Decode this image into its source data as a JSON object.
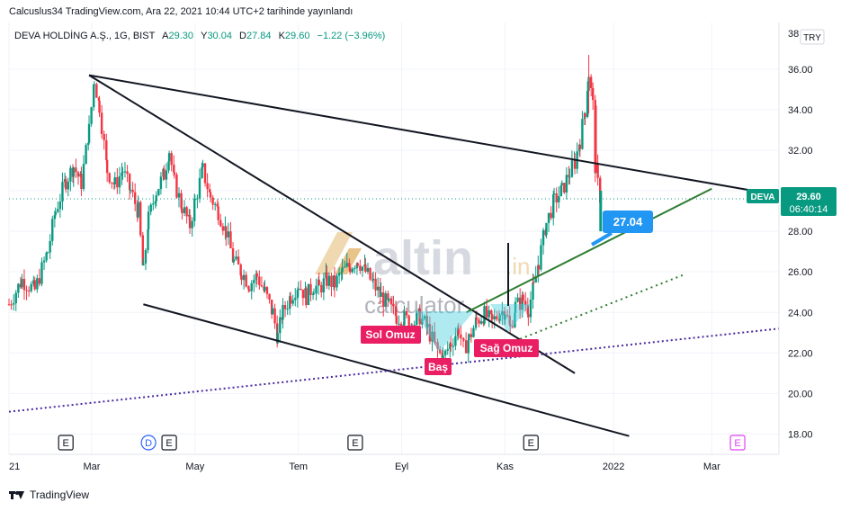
{
  "header": {
    "published": "Calcuslus34 TradingView.com, Ara 22, 2021 10:44 UTC+2 tarihinde yayınlandı"
  },
  "legend": {
    "symbol": "DEVA HOLDİNG A.Ş., 1G, BIST",
    "open_label": "A",
    "open": "29.30",
    "high_label": "Y",
    "high": "30.04",
    "low_label": "D",
    "low": "27.84",
    "close_label": "K",
    "close": "29.60",
    "change": "−1.22 (−3.96%)"
  },
  "currency": "TRY",
  "price_tag": {
    "symbol": "DEVA",
    "price": "29.60",
    "countdown": "06:40:14"
  },
  "target_label": "27.04",
  "pattern_labels": {
    "left_shoulder": "Sol Omuz",
    "head": "Baş",
    "right_shoulder": "Sağ Omuz"
  },
  "watermark": {
    "brand": "altin",
    "tld": ".in",
    "sub": "calculator"
  },
  "footer": {
    "brand": "TradingView"
  },
  "event_markers": [
    {
      "text": "E",
      "color": "#131722",
      "month_pos": 1.1
    },
    {
      "text": "D",
      "color": "#2962ff",
      "month_pos": 2.7
    },
    {
      "text": "E",
      "color": "#131722",
      "month_pos": 3.1
    },
    {
      "text": "E",
      "color": "#131722",
      "month_pos": 6.7
    },
    {
      "text": "E",
      "color": "#131722",
      "month_pos": 10.1
    },
    {
      "text": "E",
      "color": "#e040fb",
      "month_pos": 14.1
    }
  ],
  "colors": {
    "up": "#089981",
    "down": "#f23645",
    "trend": "#131722",
    "green_line": "#2e7d32",
    "purple_line": "#4a2a9e",
    "label_bg": "#e91e63",
    "target_bg": "#2196f3"
  },
  "chart_data": {
    "type": "candlestick",
    "y_axis": {
      "ticks": [
        "36.00",
        "34.00",
        "32.00",
        "30.00",
        "28.00",
        "26.00",
        "24.00",
        "22.00",
        "20.00",
        "18.00"
      ],
      "ylim": [
        17.0,
        38.3
      ],
      "top_partial_tick": "38"
    },
    "x_axis": {
      "ticks": [
        {
          "label": "21",
          "pos": 0.0
        },
        {
          "label": "Mar",
          "pos": 1.6
        },
        {
          "label": "May",
          "pos": 3.6
        },
        {
          "label": "Tem",
          "pos": 5.6
        },
        {
          "label": "Eyl",
          "pos": 7.6
        },
        {
          "label": "Kas",
          "pos": 9.6
        },
        {
          "label": "2022",
          "pos": 11.7
        },
        {
          "label": "Mar",
          "pos": 13.6
        }
      ],
      "xlim": [
        0,
        14.9
      ],
      "unit": "months since start of 2021"
    },
    "current_price": 29.6,
    "series_close": [
      [
        0.0,
        24.4
      ],
      [
        0.25,
        25.6
      ],
      [
        0.5,
        25.1
      ],
      [
        0.75,
        27.0
      ],
      [
        0.9,
        29.0
      ],
      [
        1.1,
        30.5
      ],
      [
        1.25,
        31.2
      ],
      [
        1.4,
        30.4
      ],
      [
        1.55,
        33.0
      ],
      [
        1.65,
        35.5
      ],
      [
        1.75,
        34.2
      ],
      [
        1.9,
        31.0
      ],
      [
        2.05,
        30.3
      ],
      [
        2.2,
        31.0
      ],
      [
        2.35,
        30.0
      ],
      [
        2.5,
        29.0
      ],
      [
        2.6,
        26.0
      ],
      [
        2.7,
        28.6
      ],
      [
        2.85,
        30.0
      ],
      [
        3.0,
        30.8
      ],
      [
        3.1,
        32.0
      ],
      [
        3.2,
        30.4
      ],
      [
        3.35,
        29.2
      ],
      [
        3.5,
        28.3
      ],
      [
        3.6,
        29.5
      ],
      [
        3.75,
        31.0
      ],
      [
        3.9,
        29.7
      ],
      [
        4.05,
        29.0
      ],
      [
        4.2,
        28.0
      ],
      [
        4.35,
        26.5
      ],
      [
        4.5,
        26.0
      ],
      [
        4.65,
        25.4
      ],
      [
        4.8,
        25.8
      ],
      [
        4.95,
        25.0
      ],
      [
        5.1,
        24.0
      ],
      [
        5.2,
        22.8
      ],
      [
        5.3,
        24.0
      ],
      [
        5.45,
        24.8
      ],
      [
        5.6,
        25.4
      ],
      [
        5.75,
        24.8
      ],
      [
        5.9,
        25.3
      ],
      [
        6.0,
        25.2
      ],
      [
        6.15,
        25.6
      ],
      [
        6.3,
        25.4
      ],
      [
        6.45,
        26.0
      ],
      [
        6.6,
        26.3
      ],
      [
        6.75,
        26.6
      ],
      [
        6.9,
        26.0
      ],
      [
        7.05,
        25.4
      ],
      [
        7.2,
        24.8
      ],
      [
        7.35,
        24.3
      ],
      [
        7.5,
        23.8
      ],
      [
        7.65,
        23.7
      ],
      [
        7.8,
        23.4
      ],
      [
        7.95,
        23.8
      ],
      [
        8.1,
        23.2
      ],
      [
        8.25,
        22.3
      ],
      [
        8.4,
        21.7
      ],
      [
        8.55,
        22.5
      ],
      [
        8.7,
        23.2
      ],
      [
        8.8,
        22.2
      ],
      [
        8.9,
        22.7
      ],
      [
        9.05,
        23.6
      ],
      [
        9.2,
        23.9
      ],
      [
        9.35,
        23.5
      ],
      [
        9.5,
        24.0
      ],
      [
        9.6,
        24.1
      ],
      [
        9.7,
        23.2
      ],
      [
        9.8,
        24.3
      ],
      [
        9.95,
        24.6
      ],
      [
        10.05,
        24.2
      ],
      [
        10.15,
        25.2
      ],
      [
        10.25,
        26.5
      ],
      [
        10.4,
        28.4
      ],
      [
        10.55,
        29.5
      ],
      [
        10.7,
        30.0
      ],
      [
        10.85,
        30.9
      ],
      [
        10.95,
        31.4
      ],
      [
        11.05,
        32.5
      ],
      [
        11.15,
        34.0
      ],
      [
        11.22,
        35.8
      ],
      [
        11.3,
        34.2
      ],
      [
        11.35,
        30.9
      ],
      [
        11.45,
        29.6
      ]
    ],
    "trend_lines": [
      {
        "style": "solid",
        "points": [
          [
            1.55,
            35.7
          ],
          [
            14.4,
            30.0
          ]
        ]
      },
      {
        "style": "solid",
        "points": [
          [
            1.55,
            35.7
          ],
          [
            10.95,
            21.0
          ]
        ]
      },
      {
        "style": "solid",
        "points": [
          [
            2.6,
            24.4
          ],
          [
            12.0,
            17.9
          ]
        ]
      },
      {
        "style": "dashed-purple",
        "points": [
          [
            0.0,
            19.1
          ],
          [
            14.9,
            23.2
          ]
        ]
      },
      {
        "style": "dotted-green",
        "points": [
          [
            9.6,
            22.4
          ],
          [
            13.1,
            25.9
          ]
        ]
      },
      {
        "style": "solid-green",
        "points": [
          [
            8.85,
            24.0
          ],
          [
            13.6,
            30.1
          ]
        ]
      }
    ]
  }
}
